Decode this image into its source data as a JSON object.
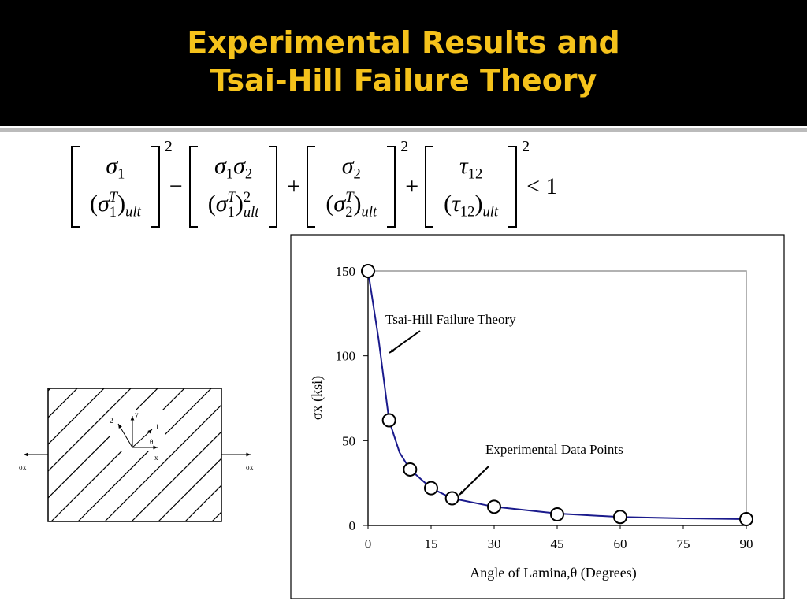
{
  "header": {
    "title_lines": [
      "Experimental Results and",
      "Tsai-Hill Failure Theory"
    ]
  },
  "formula": [
    {
      "num": [
        {
          "base": "σ"
        },
        {
          "sub": "1"
        }
      ],
      "den": [
        {
          "base": "("
        },
        {
          "base": "σ"
        },
        {
          "sup": "T",
          "sub": "1"
        },
        {
          "base": ")"
        },
        {
          "sub": "ult"
        }
      ],
      "power": "2"
    },
    {
      "op": "−"
    },
    {
      "num": [
        {
          "base": "σ"
        },
        {
          "sub": "1"
        },
        {
          "base": "σ"
        },
        {
          "sub": "2"
        }
      ],
      "den": [
        {
          "base": "("
        },
        {
          "base": "σ"
        },
        {
          "sup": "T",
          "sub": "1"
        },
        {
          "base": ")"
        },
        {
          "sup": "2",
          "sub": "ult"
        }
      ]
    },
    {
      "op": "+"
    },
    {
      "num": [
        {
          "base": "σ"
        },
        {
          "sub": "2"
        }
      ],
      "den": [
        {
          "base": "("
        },
        {
          "base": "σ"
        },
        {
          "sup": "T",
          "sub": "2"
        },
        {
          "base": ")"
        },
        {
          "sub": "ult"
        }
      ],
      "power": "2"
    },
    {
      "op": "+"
    },
    {
      "num": [
        {
          "base": "τ"
        },
        {
          "sub": "12"
        }
      ],
      "den": [
        {
          "base": "("
        },
        {
          "base": "τ"
        },
        {
          "sub": "12"
        },
        {
          "base": ")"
        },
        {
          "sub": "ult"
        }
      ],
      "power": "2"
    },
    {
      "op": "< 1"
    }
  ],
  "diagram": {
    "labels": {
      "axis_2": "2",
      "axis_y": "y",
      "axis_1": "1",
      "angle": "θ",
      "axis_x": "x",
      "load_left": "σx",
      "load_right": "σx"
    }
  },
  "chart_data": {
    "type": "line",
    "x_label": "Angle of Lamina,θ (Degrees)",
    "y_label": "σx (ksi)",
    "xlim": [
      0,
      90
    ],
    "ylim": [
      0,
      150
    ],
    "xticks": [
      0,
      15,
      30,
      45,
      60,
      75,
      90
    ],
    "yticks": [
      0,
      50,
      100,
      150
    ],
    "series": [
      {
        "color": "#1a1a8c",
        "marker": false,
        "x": [
          0,
          2.5,
          5,
          7.5,
          10,
          15,
          20,
          30,
          45,
          60,
          75,
          90
        ],
        "values": [
          150,
          110,
          62,
          43,
          33,
          22,
          16,
          11,
          7,
          5,
          4.2,
          3.7
        ]
      },
      {
        "color": "#000000",
        "marker": true,
        "x": [
          0,
          5,
          10,
          15,
          20,
          30,
          45,
          60,
          90
        ],
        "values": [
          150,
          62,
          33,
          22,
          16,
          11,
          6.5,
          5,
          3.7
        ]
      }
    ],
    "annotations": [
      "Tsai-Hill Failure Theory",
      "Experimental Data Points"
    ]
  }
}
